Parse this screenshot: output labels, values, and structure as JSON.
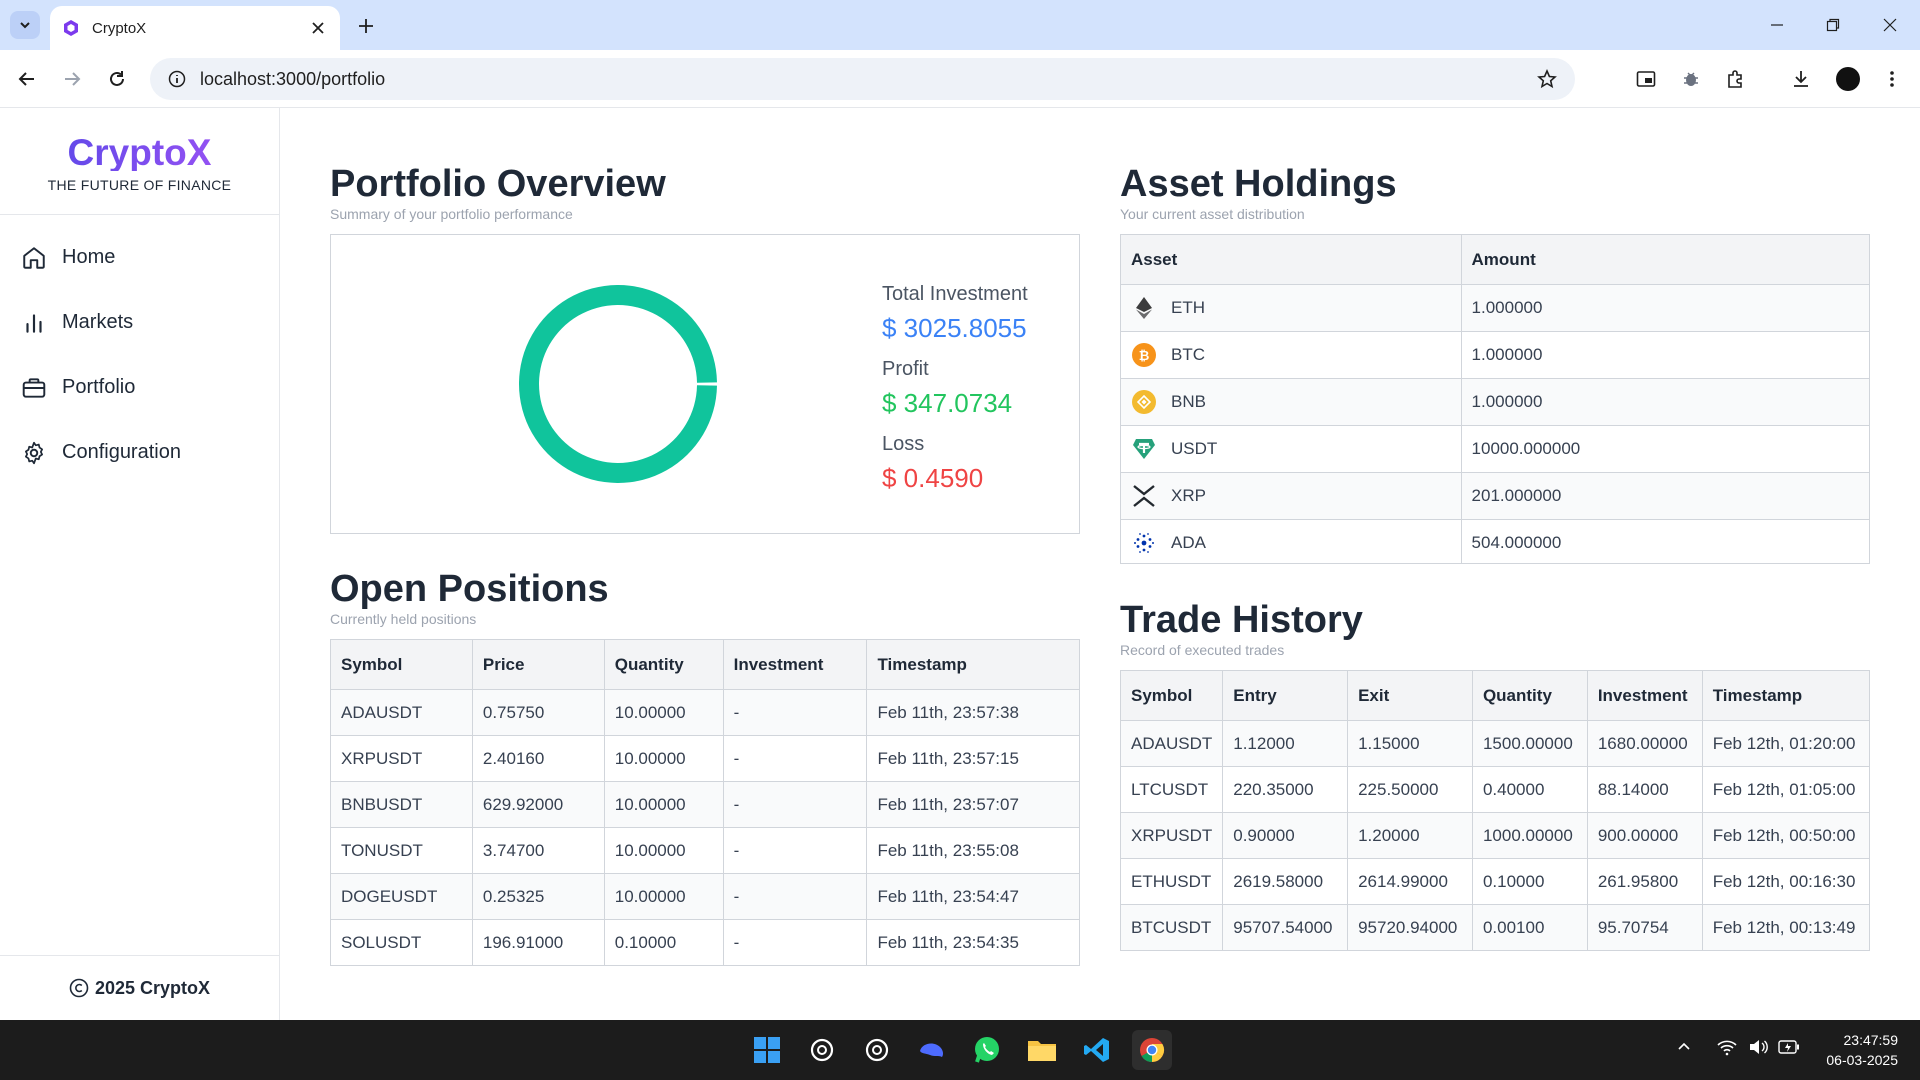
{
  "browser": {
    "tab_title": "CryptoX",
    "url": "localhost:3000/portfolio"
  },
  "sidebar": {
    "brand": "CryptoX",
    "tagline": "THE FUTURE OF FINANCE",
    "items": [
      {
        "label": "Home",
        "icon": "home-icon"
      },
      {
        "label": "Markets",
        "icon": "bar-chart-icon"
      },
      {
        "label": "Portfolio",
        "icon": "briefcase-icon"
      },
      {
        "label": "Configuration",
        "icon": "gear-icon"
      }
    ],
    "footer": "2025 CryptoX"
  },
  "overview": {
    "title": "Portfolio Overview",
    "subtitle": "Summary of your portfolio performance",
    "total_label": "Total Investment",
    "total_value": "$ 3025.8055",
    "profit_label": "Profit",
    "profit_value": "$ 347.0734",
    "loss_label": "Loss",
    "loss_value": "$ 0.4590",
    "colors": {
      "donut": "#10c49c",
      "total": "#3b82f6",
      "profit": "#22c55e",
      "loss": "#ef4444"
    }
  },
  "chart_data": {
    "type": "pie",
    "categories": [
      "Profit",
      "Loss"
    ],
    "values": [
      347.0734,
      0.459
    ],
    "donut": true
  },
  "holdings": {
    "title": "Asset Holdings",
    "subtitle": "Your current asset distribution",
    "headers": [
      "Asset",
      "Amount"
    ],
    "rows": [
      {
        "asset": "ETH",
        "amount": "1.000000",
        "icon": "ethereum-icon",
        "color": "#3c3c3d"
      },
      {
        "asset": "BTC",
        "amount": "1.000000",
        "icon": "bitcoin-icon",
        "color": "#f7931a"
      },
      {
        "asset": "BNB",
        "amount": "1.000000",
        "icon": "bnb-icon",
        "color": "#f3ba2f"
      },
      {
        "asset": "USDT",
        "amount": "10000.000000",
        "icon": "tether-icon",
        "color": "#26a17b"
      },
      {
        "asset": "XRP",
        "amount": "201.000000",
        "icon": "xrp-icon",
        "color": "#23292f"
      },
      {
        "asset": "ADA",
        "amount": "504.000000",
        "icon": "cardano-icon",
        "color": "#0033ad"
      }
    ]
  },
  "positions": {
    "title": "Open Positions",
    "subtitle": "Currently held positions",
    "headers": [
      "Symbol",
      "Price",
      "Quantity",
      "Investment",
      "Timestamp"
    ],
    "rows": [
      [
        "ADAUSDT",
        "0.75750",
        "10.00000",
        "-",
        "Feb 11th, 23:57:38"
      ],
      [
        "XRPUSDT",
        "2.40160",
        "10.00000",
        "-",
        "Feb 11th, 23:57:15"
      ],
      [
        "BNBUSDT",
        "629.92000",
        "10.00000",
        "-",
        "Feb 11th, 23:57:07"
      ],
      [
        "TONUSDT",
        "3.74700",
        "10.00000",
        "-",
        "Feb 11th, 23:55:08"
      ],
      [
        "DOGEUSDT",
        "0.25325",
        "10.00000",
        "-",
        "Feb 11th, 23:54:47"
      ],
      [
        "SOLUSDT",
        "196.91000",
        "0.10000",
        "-",
        "Feb 11th, 23:54:35"
      ]
    ]
  },
  "trades": {
    "title": "Trade History",
    "subtitle": "Record of executed trades",
    "headers": [
      "Symbol",
      "Entry",
      "Exit",
      "Quantity",
      "Investment",
      "Timestamp"
    ],
    "rows": [
      [
        "ADAUSDT",
        "1.12000",
        "1.15000",
        "1500.00000",
        "1680.00000",
        "Feb 12th, 01:20:00"
      ],
      [
        "LTCUSDT",
        "220.35000",
        "225.50000",
        "0.40000",
        "88.14000",
        "Feb 12th, 01:05:00"
      ],
      [
        "XRPUSDT",
        "0.90000",
        "1.20000",
        "1000.00000",
        "900.00000",
        "Feb 12th, 00:50:00"
      ],
      [
        "ETHUSDT",
        "2619.58000",
        "2614.99000",
        "0.10000",
        "261.95800",
        "Feb 12th, 00:16:30"
      ],
      [
        "BTCUSDT",
        "95707.54000",
        "95720.94000",
        "0.00100",
        "95.70754",
        "Feb 12th, 00:13:49"
      ]
    ]
  },
  "taskbar": {
    "time": "23:47:59",
    "date": "06-03-2025"
  }
}
